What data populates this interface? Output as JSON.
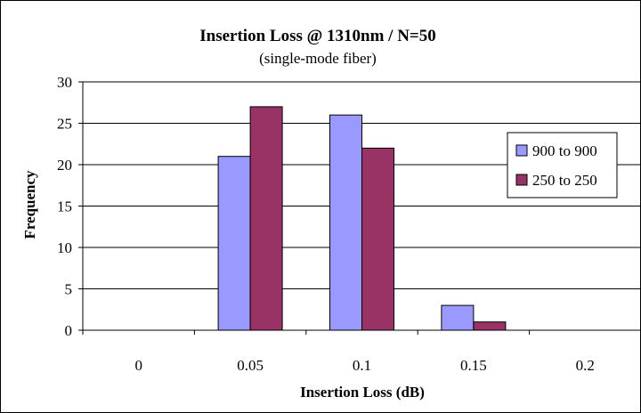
{
  "chart_data": {
    "type": "bar",
    "title": "Insertion Loss @ 1310nm / N=50",
    "subtitle": "(single-mode fiber)",
    "xlabel": "Insertion Loss (dB)",
    "ylabel": "Frequency",
    "categories": [
      "0",
      "0.05",
      "0.1",
      "0.15",
      "0.2"
    ],
    "series": [
      {
        "name": "900 to 900",
        "values": [
          0,
          21,
          26,
          3,
          0
        ],
        "color": "#9999ff"
      },
      {
        "name": "250 to 250",
        "values": [
          0,
          27,
          22,
          1,
          0
        ],
        "color": "#993366"
      }
    ],
    "ylim": [
      0,
      30
    ],
    "yticks": [
      0,
      5,
      10,
      15,
      20,
      25,
      30
    ],
    "grid": true,
    "legend_position": "right"
  }
}
